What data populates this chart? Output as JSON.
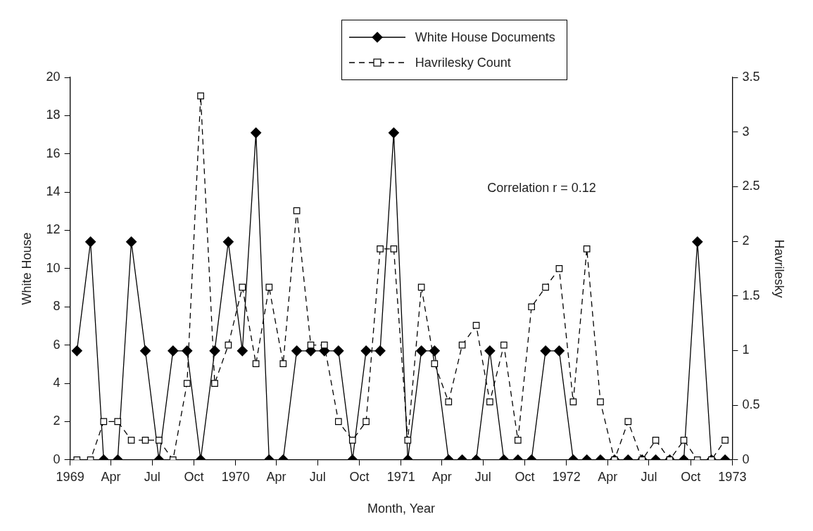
{
  "chart_data": {
    "type": "line",
    "xlabel": "Month, Year",
    "ylabel": "White House",
    "y2label": "Havrilesky",
    "x": [
      "1969-01-16",
      "1969-02-15",
      "1969-03-16",
      "1969-04-16",
      "1969-05-16",
      "1969-06-16",
      "1969-07-16",
      "1969-08-16",
      "1969-09-16",
      "1969-10-16",
      "1969-11-16",
      "1969-12-16",
      "1970-01-16",
      "1970-02-15",
      "1970-03-16",
      "1970-04-16",
      "1970-05-16",
      "1970-06-16",
      "1970-07-16",
      "1970-08-16",
      "1970-09-16",
      "1970-10-16",
      "1970-11-16",
      "1970-12-16",
      "1971-01-16",
      "1971-02-15",
      "1971-03-16",
      "1971-04-16",
      "1971-05-16",
      "1971-06-16",
      "1971-07-16",
      "1971-08-16",
      "1971-09-16",
      "1971-10-16",
      "1971-11-16",
      "1971-12-16",
      "1972-01-16",
      "1972-02-15",
      "1972-03-16",
      "1972-04-16",
      "1972-05-16",
      "1972-06-16",
      "1972-07-16",
      "1972-08-16",
      "1972-09-16",
      "1972-10-16",
      "1972-11-16",
      "1972-12-16"
    ],
    "xlim": [
      "1969-01-01",
      "1973-01-01"
    ],
    "xticks": [
      {
        "value": "1969-01-01",
        "label": "1969"
      },
      {
        "value": "1969-04-01",
        "label": "Apr"
      },
      {
        "value": "1969-07-01",
        "label": "Jul"
      },
      {
        "value": "1969-10-01",
        "label": "Oct"
      },
      {
        "value": "1970-01-01",
        "label": "1970"
      },
      {
        "value": "1970-04-01",
        "label": "Apr"
      },
      {
        "value": "1970-07-01",
        "label": "Jul"
      },
      {
        "value": "1970-10-01",
        "label": "Oct"
      },
      {
        "value": "1971-01-01",
        "label": "1971"
      },
      {
        "value": "1971-04-01",
        "label": "Apr"
      },
      {
        "value": "1971-07-01",
        "label": "Jul"
      },
      {
        "value": "1971-10-01",
        "label": "Oct"
      },
      {
        "value": "1972-01-01",
        "label": "1972"
      },
      {
        "value": "1972-04-01",
        "label": "Apr"
      },
      {
        "value": "1972-07-01",
        "label": "Jul"
      },
      {
        "value": "1972-10-01",
        "label": "Oct"
      },
      {
        "value": "1973-01-01",
        "label": "1973"
      }
    ],
    "ylim": [
      0,
      20
    ],
    "yticks": [
      0,
      2,
      4,
      6,
      8,
      10,
      12,
      14,
      16,
      18,
      20
    ],
    "y2lim": [
      0,
      3.5
    ],
    "y2ticks": [
      0,
      0.5,
      1,
      1.5,
      2,
      2.5,
      3,
      3.5
    ],
    "series": [
      {
        "name": "White House Documents",
        "color": "#000000",
        "marker": "diamond",
        "line_style": "solid",
        "values": [
          5.7,
          11.4,
          0,
          0,
          11.4,
          5.7,
          0,
          5.7,
          5.7,
          0,
          5.7,
          11.4,
          5.7,
          17.1,
          0,
          0,
          5.7,
          5.7,
          5.7,
          5.7,
          0,
          5.7,
          5.7,
          17.1,
          0,
          5.7,
          5.7,
          0,
          0,
          0,
          5.7,
          0,
          0,
          0,
          5.7,
          5.7,
          0,
          0,
          0,
          0,
          0,
          0,
          0,
          0,
          0,
          11.4,
          0,
          0
        ]
      },
      {
        "name": "Havrilesky Count",
        "color": "#000000",
        "marker": "square",
        "line_style": "dashed",
        "axis": "y2",
        "values": [
          0,
          0,
          0.35,
          0.35,
          0.18,
          0.18,
          0.18,
          0,
          0.7,
          3.33,
          0.7,
          1.05,
          1.58,
          0.88,
          1.58,
          0.88,
          2.28,
          1.05,
          1.05,
          0.35,
          0.18,
          0.35,
          1.93,
          1.93,
          0.18,
          1.58,
          0.88,
          0.53,
          1.05,
          1.23,
          0.53,
          1.05,
          0.18,
          1.4,
          1.58,
          1.75,
          0.53,
          1.93,
          0.53,
          0,
          0.35,
          0,
          0.18,
          0,
          0.18,
          0,
          0,
          0.18
        ]
      }
    ],
    "legend": "top",
    "grid": false,
    "annotations": [
      "Correlation r = 0.12"
    ]
  }
}
